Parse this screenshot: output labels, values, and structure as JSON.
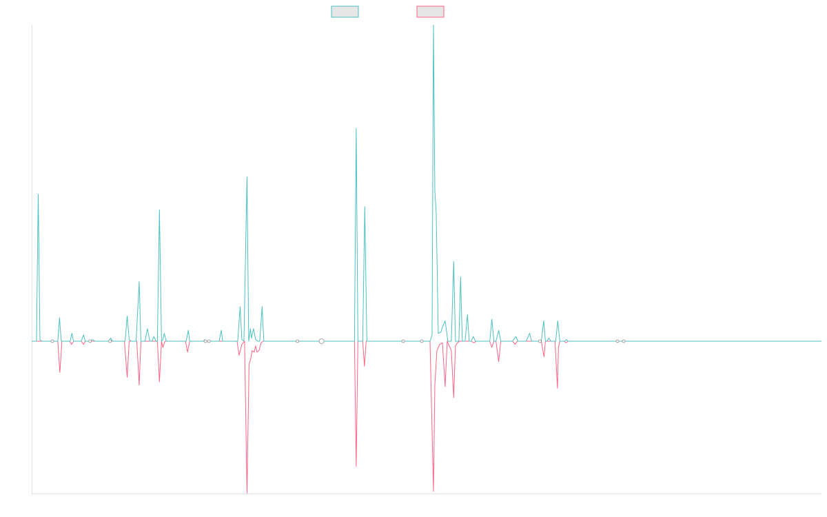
{
  "chart_data": {
    "type": "line",
    "title": "",
    "xlabel": "",
    "ylabel": "",
    "grid": false,
    "legend_position": "top-center",
    "xlim": [
      0,
      1150
    ],
    "ylim": [
      -1.0,
      2.0
    ],
    "baseline": 0,
    "series": [
      {
        "name": "",
        "color": "#4bc0c0",
        "direction": "up",
        "points": [
          [
            0,
            0
          ],
          [
            7,
            0
          ],
          [
            9.5,
            0.94
          ],
          [
            12,
            0.01
          ],
          [
            15,
            0
          ],
          [
            28,
            0
          ],
          [
            38,
            0
          ],
          [
            40.5,
            0.15
          ],
          [
            43,
            0
          ],
          [
            56,
            0
          ],
          [
            58.5,
            0.05
          ],
          [
            61,
            0
          ],
          [
            72,
            0
          ],
          [
            75.5,
            0.04
          ],
          [
            78,
            0
          ],
          [
            85,
            0
          ],
          [
            88.5,
            0.01
          ],
          [
            92,
            0
          ],
          [
            112,
            0
          ],
          [
            115,
            0.02
          ],
          [
            118,
            0
          ],
          [
            136,
            0
          ],
          [
            139,
            0.16
          ],
          [
            142,
            0.01
          ],
          [
            145,
            0
          ],
          [
            152,
            0
          ],
          [
            156.5,
            0.38
          ],
          [
            159,
            0
          ],
          [
            165,
            0
          ],
          [
            168.5,
            0.08
          ],
          [
            172,
            0
          ],
          [
            175,
            0
          ],
          [
            178,
            0.03
          ],
          [
            181,
            0
          ],
          [
            183,
            0
          ],
          [
            186,
            0.84
          ],
          [
            189,
            0
          ],
          [
            191,
            0.01
          ],
          [
            193,
            0.05
          ],
          [
            196,
            0
          ],
          [
            225,
            0
          ],
          [
            228,
            0.07
          ],
          [
            230,
            0
          ],
          [
            250,
            0
          ],
          [
            252,
            0.01
          ],
          [
            255,
            0
          ],
          [
            273,
            0
          ],
          [
            276,
            0.07
          ],
          [
            278,
            0
          ],
          [
            300,
            0
          ],
          [
            303.5,
            0.22
          ],
          [
            306,
            0.01
          ],
          [
            309,
            0
          ],
          [
            313.5,
            1.05
          ],
          [
            316,
            0
          ],
          [
            318.5,
            0.08
          ],
          [
            320,
            0.02
          ],
          [
            323,
            0.08
          ],
          [
            326,
            0.01
          ],
          [
            329,
            0
          ],
          [
            332,
            0
          ],
          [
            335.5,
            0.22
          ],
          [
            338,
            0
          ],
          [
            412,
            0
          ],
          [
            420,
            0
          ],
          [
            470,
            0
          ],
          [
            472.5,
            1.36
          ],
          [
            475,
            0
          ],
          [
            482,
            0
          ],
          [
            485,
            0.86
          ],
          [
            488,
            0
          ],
          [
            540,
            0
          ],
          [
            570,
            0
          ],
          [
            580,
            0
          ],
          [
            583,
            0.04
          ],
          [
            585,
            2.02
          ],
          [
            587,
            0.96
          ],
          [
            589,
            0.82
          ],
          [
            592,
            0.05
          ],
          [
            596,
            0.06
          ],
          [
            598,
            0.09
          ],
          [
            602,
            0.13
          ],
          [
            606,
            0
          ],
          [
            611,
            0
          ],
          [
            614.5,
            0.51
          ],
          [
            617,
            0
          ],
          [
            622,
            0
          ],
          [
            624.5,
            0.41
          ],
          [
            627,
            0
          ],
          [
            631,
            0
          ],
          [
            634.5,
            0.17
          ],
          [
            637,
            0
          ],
          [
            640,
            0
          ],
          [
            643,
            0.03
          ],
          [
            646,
            0
          ],
          [
            667,
            0
          ],
          [
            670,
            0.14
          ],
          [
            673,
            0
          ],
          [
            676,
            0
          ],
          [
            680,
            0.07
          ],
          [
            683,
            0
          ],
          [
            700,
            0
          ],
          [
            705,
            0.03
          ],
          [
            708,
            0
          ],
          [
            720,
            0
          ],
          [
            725,
            0.05
          ],
          [
            728,
            0
          ],
          [
            742,
            0
          ],
          [
            745.5,
            0.13
          ],
          [
            748,
            0
          ],
          [
            750,
            0
          ],
          [
            753,
            0.02
          ],
          [
            756,
            0
          ],
          [
            763,
            0
          ],
          [
            766,
            0.13
          ],
          [
            769,
            0
          ],
          [
            776,
            0
          ],
          [
            778.5,
            0.01
          ],
          [
            781,
            0
          ],
          [
            800,
            0
          ],
          [
            850,
            0
          ],
          [
            860,
            0
          ],
          [
            1150,
            0
          ]
        ]
      },
      {
        "name": "",
        "color": "#ff6384",
        "direction": "down",
        "points": [
          [
            0,
            0
          ],
          [
            38,
            0
          ],
          [
            41,
            -0.2
          ],
          [
            44,
            0
          ],
          [
            55,
            0
          ],
          [
            58,
            -0.02
          ],
          [
            61,
            0
          ],
          [
            72,
            0
          ],
          [
            75.5,
            -0.02
          ],
          [
            78,
            0
          ],
          [
            135,
            0
          ],
          [
            139,
            -0.23
          ],
          [
            142,
            0
          ],
          [
            153,
            0
          ],
          [
            156.5,
            -0.28
          ],
          [
            159,
            0
          ],
          [
            183,
            0
          ],
          [
            186,
            -0.26
          ],
          [
            189,
            0
          ],
          [
            191,
            -0.04
          ],
          [
            194,
            0
          ],
          [
            224,
            0
          ],
          [
            227,
            -0.07
          ],
          [
            230,
            0
          ],
          [
            299,
            0
          ],
          [
            302,
            -0.09
          ],
          [
            306,
            -0.02
          ],
          [
            310,
            0
          ],
          [
            313.5,
            -0.97
          ],
          [
            316.5,
            -0.15
          ],
          [
            319,
            -0.11
          ],
          [
            321,
            -0.06
          ],
          [
            324,
            -0.07
          ],
          [
            326,
            -0.03
          ],
          [
            328,
            -0.07
          ],
          [
            331,
            -0.06
          ],
          [
            334,
            -0.01
          ],
          [
            337,
            0
          ],
          [
            420,
            0
          ],
          [
            470,
            0
          ],
          [
            472.5,
            -0.8
          ],
          [
            475,
            0
          ],
          [
            482,
            0
          ],
          [
            484.5,
            -0.16
          ],
          [
            487,
            0
          ],
          [
            580,
            0
          ],
          [
            585,
            -0.96
          ],
          [
            587,
            -0.28
          ],
          [
            590,
            -0.06
          ],
          [
            594,
            -0.02
          ],
          [
            598,
            -0.01
          ],
          [
            602,
            -0.29
          ],
          [
            605,
            0
          ],
          [
            608,
            -0.03
          ],
          [
            611,
            -0.06
          ],
          [
            614.5,
            -0.36
          ],
          [
            617,
            -0.03
          ],
          [
            620,
            -0.01
          ],
          [
            623,
            0
          ],
          [
            640,
            0
          ],
          [
            644,
            -0.01
          ],
          [
            647,
            0
          ],
          [
            667,
            0
          ],
          [
            670,
            -0.04
          ],
          [
            673,
            0
          ],
          [
            676,
            0
          ],
          [
            680,
            -0.13
          ],
          [
            683,
            0
          ],
          [
            700,
            0
          ],
          [
            704,
            -0.02
          ],
          [
            707,
            0
          ],
          [
            742,
            0
          ],
          [
            746,
            -0.1
          ],
          [
            748,
            0
          ],
          [
            762,
            0
          ],
          [
            765.5,
            -0.3
          ],
          [
            767,
            -0.04
          ],
          [
            769,
            0
          ],
          [
            775,
            0
          ],
          [
            778,
            -0.01
          ],
          [
            781,
            0
          ],
          [
            1150,
            0
          ]
        ]
      }
    ],
    "markers": [
      [
        30,
        0
      ],
      [
        85,
        0
      ],
      [
        114,
        0
      ],
      [
        253,
        0
      ],
      [
        258,
        0
      ],
      [
        387,
        0
      ],
      [
        422,
        0
      ],
      [
        541,
        0
      ],
      [
        568,
        0
      ],
      [
        740,
        0
      ],
      [
        853,
        0
      ],
      [
        862,
        0
      ]
    ]
  }
}
